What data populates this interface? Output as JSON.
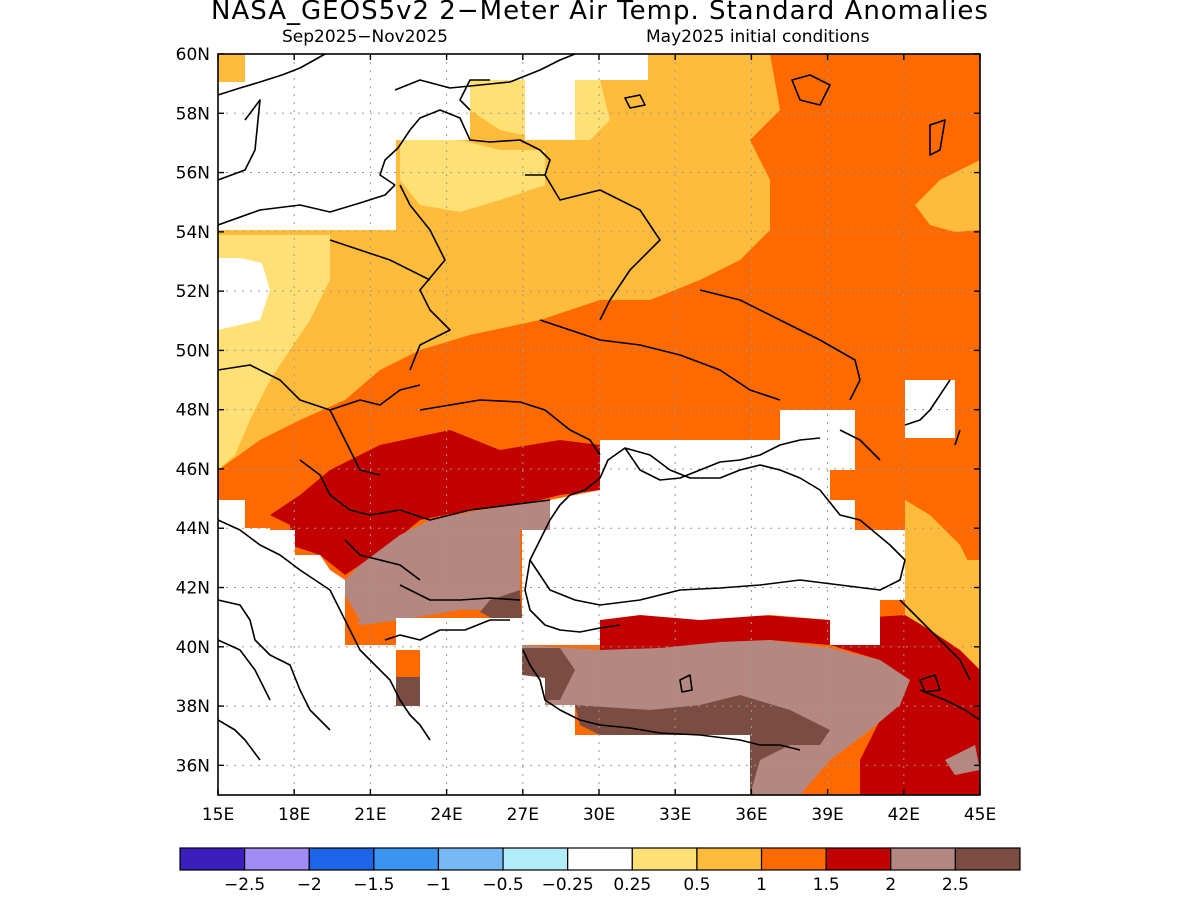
{
  "header": {
    "title": "NASA_GEOS5v2 2−Meter Air Temp. Standard Anomalies",
    "subtitle_left": "Sep2025−Nov2025",
    "subtitle_right": "May2025 initial conditions"
  },
  "map": {
    "lon_range": [
      15,
      45
    ],
    "lat_range": [
      35,
      60
    ],
    "lon_ticks": [
      "15E",
      "18E",
      "21E",
      "24E",
      "27E",
      "30E",
      "33E",
      "36E",
      "39E",
      "42E",
      "45E"
    ],
    "lat_ticks": [
      "60N",
      "58N",
      "56N",
      "54N",
      "52N",
      "50N",
      "48N",
      "46N",
      "44N",
      "42N",
      "40N",
      "38N",
      "36N"
    ],
    "grid": "dotted"
  },
  "colorbar": {
    "colors": [
      "#3b1fbd",
      "#a18cf5",
      "#1c64e8",
      "#3a94f0",
      "#77b8f7",
      "#b3ecf9",
      "#ffffff",
      "#ffe074",
      "#ffbb3b",
      "#ff6a00",
      "#c20000",
      "#b48880",
      "#7a4c42"
    ],
    "labels": [
      "−2.5",
      "−2",
      "−1.5",
      "−1",
      "−0.5",
      "−0.25",
      "0.25",
      "0.5",
      "1",
      "1.5",
      "2",
      "2.5"
    ]
  }
}
